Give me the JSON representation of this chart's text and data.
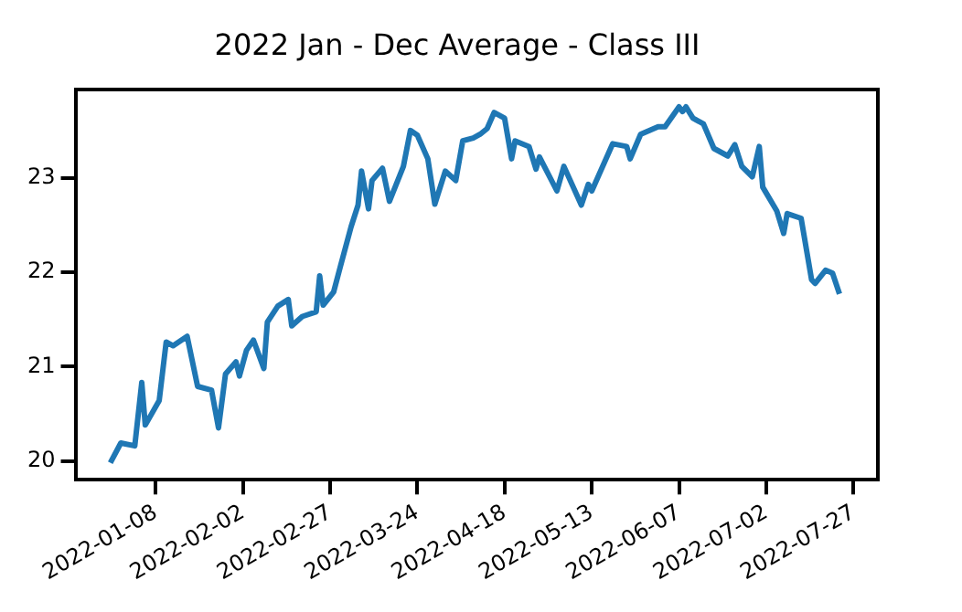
{
  "chart_data": {
    "type": "line",
    "title": "2022 Jan - Dec Average - Class III",
    "x": [
      "2021-12-26",
      "2021-12-29",
      "2022-01-02",
      "2022-01-04",
      "2022-01-05",
      "2022-01-09",
      "2022-01-11",
      "2022-01-13",
      "2022-01-17",
      "2022-01-20",
      "2022-01-24",
      "2022-01-26",
      "2022-01-28",
      "2022-01-31",
      "2022-02-01",
      "2022-02-03",
      "2022-02-05",
      "2022-02-08",
      "2022-02-09",
      "2022-02-12",
      "2022-02-15",
      "2022-02-16",
      "2022-02-19",
      "2022-02-23",
      "2022-02-24",
      "2022-02-25",
      "2022-02-28",
      "2022-03-02",
      "2022-03-05",
      "2022-03-07",
      "2022-03-08",
      "2022-03-10",
      "2022-03-11",
      "2022-03-14",
      "2022-03-16",
      "2022-03-20",
      "2022-03-22",
      "2022-03-24",
      "2022-03-27",
      "2022-03-29",
      "2022-04-01",
      "2022-04-04",
      "2022-04-06",
      "2022-04-09",
      "2022-04-11",
      "2022-04-13",
      "2022-04-15",
      "2022-04-18",
      "2022-04-20",
      "2022-04-21",
      "2022-04-25",
      "2022-04-27",
      "2022-04-28",
      "2022-05-03",
      "2022-05-05",
      "2022-05-10",
      "2022-05-12",
      "2022-05-13",
      "2022-05-19",
      "2022-05-23",
      "2022-05-24",
      "2022-05-27",
      "2022-06-01",
      "2022-06-03",
      "2022-06-07",
      "2022-06-08",
      "2022-06-09",
      "2022-06-11",
      "2022-06-14",
      "2022-06-17",
      "2022-06-21",
      "2022-06-23",
      "2022-06-25",
      "2022-06-28",
      "2022-06-30",
      "2022-07-01",
      "2022-07-05",
      "2022-07-07",
      "2022-07-08",
      "2022-07-12",
      "2022-07-15",
      "2022-07-16",
      "2022-07-19",
      "2022-07-21",
      "2022-07-23"
    ],
    "series": [
      {
        "color": "#1f77b4",
        "values": [
          19.98,
          20.19,
          20.16,
          20.83,
          20.38,
          20.64,
          21.26,
          21.22,
          21.32,
          20.79,
          20.75,
          20.35,
          20.92,
          21.05,
          20.9,
          21.17,
          21.28,
          20.98,
          21.47,
          21.64,
          21.71,
          21.43,
          21.53,
          21.58,
          21.96,
          21.65,
          21.79,
          22.07,
          22.48,
          22.71,
          23.07,
          22.67,
          22.97,
          23.1,
          22.75,
          23.12,
          23.5,
          23.45,
          23.2,
          22.72,
          23.07,
          22.97,
          23.39,
          23.42,
          23.46,
          23.52,
          23.69,
          23.63,
          23.2,
          23.39,
          23.33,
          23.09,
          23.22,
          22.86,
          23.12,
          22.71,
          22.93,
          22.86,
          23.36,
          23.33,
          23.2,
          23.46,
          23.54,
          23.54,
          23.75,
          23.7,
          23.75,
          23.63,
          23.57,
          23.31,
          23.23,
          23.35,
          23.12,
          23.01,
          23.33,
          22.9,
          22.65,
          22.41,
          22.62,
          22.57,
          21.92,
          21.88,
          22.02,
          21.99,
          21.77
        ]
      }
    ],
    "xlim": [
      "2021-12-16",
      "2022-08-03"
    ],
    "xticks": [
      "2022-01-08",
      "2022-02-02",
      "2022-02-27",
      "2022-03-24",
      "2022-04-18",
      "2022-05-13",
      "2022-06-07",
      "2022-07-02",
      "2022-07-27"
    ],
    "ylim": [
      19.8,
      23.93
    ],
    "yticks": [
      20,
      21,
      22,
      23
    ],
    "marker": "none",
    "line_style": "solid",
    "grid": false,
    "legend": false
  }
}
